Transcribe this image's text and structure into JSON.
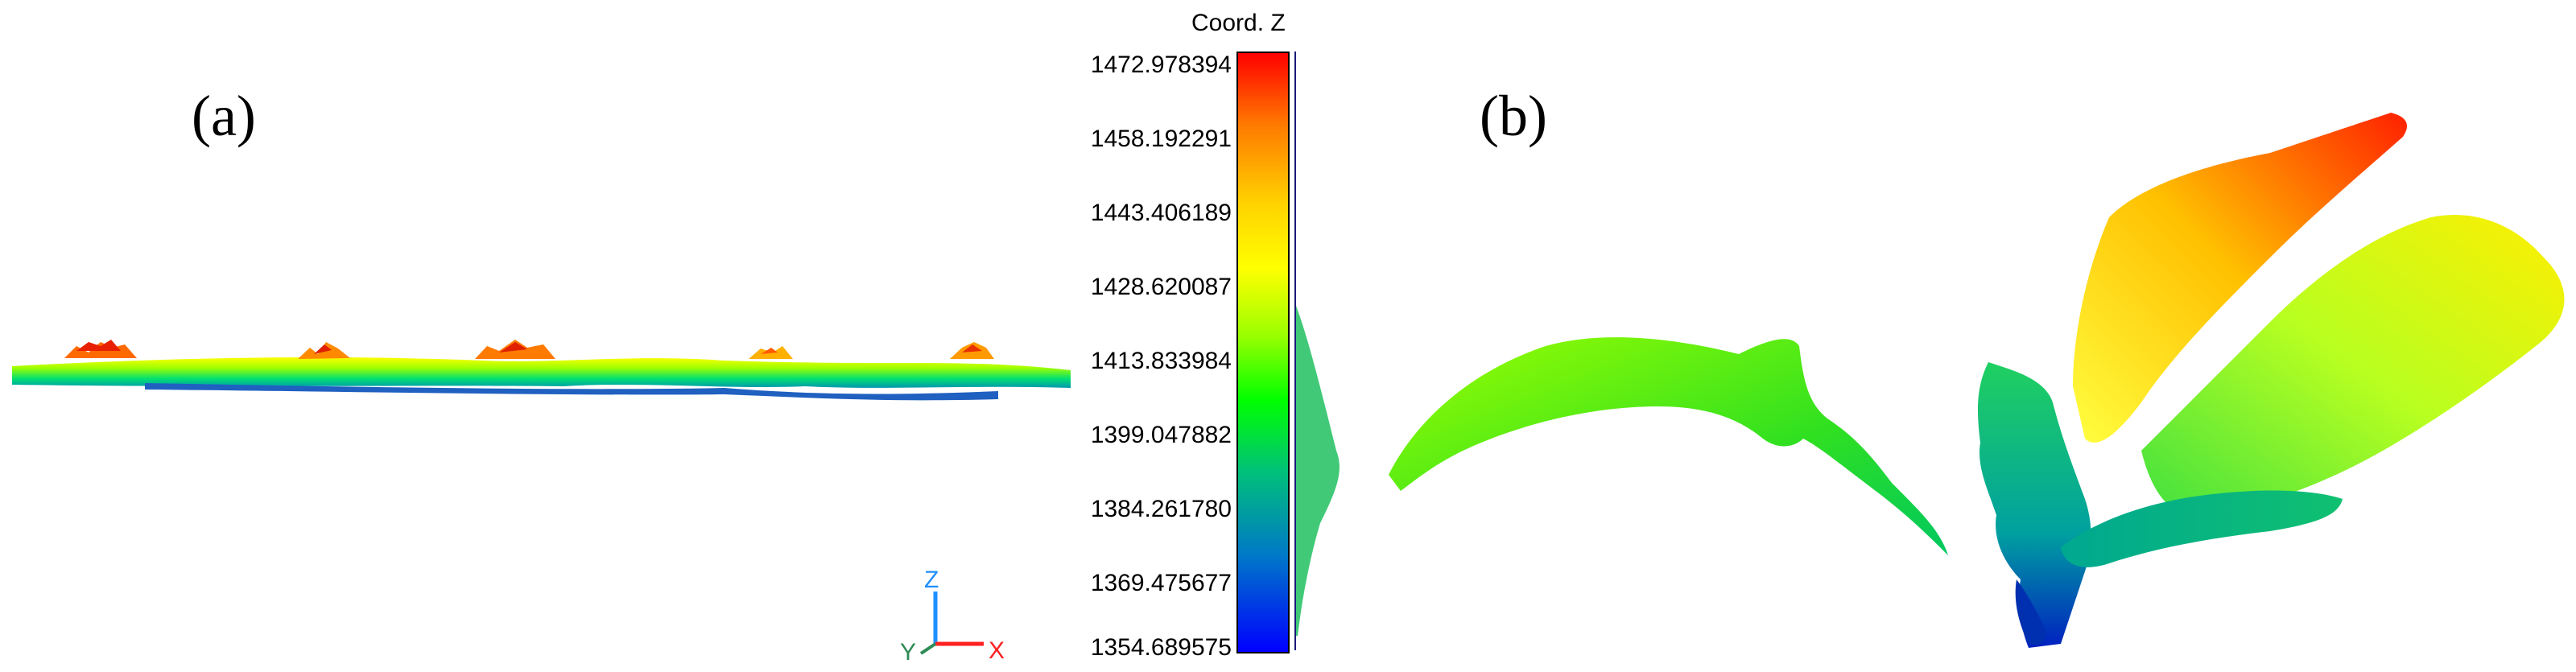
{
  "panels": {
    "a_label": "(a)",
    "b_label": "(b)"
  },
  "colorbar": {
    "title": "Coord. Z",
    "ticks": [
      "1472.978394",
      "1458.192291",
      "1443.406189",
      "1428.620087",
      "1413.833984",
      "1399.047882",
      "1384.261780",
      "1369.475677",
      "1354.689575"
    ],
    "gradient_colors": [
      "#ff0000",
      "#ff7a00",
      "#ffd200",
      "#ffff00",
      "#9cff00",
      "#00ff00",
      "#00c07a",
      "#0078c8",
      "#0000ff"
    ]
  },
  "axis_triad": {
    "z": "Z",
    "y": "Y",
    "x": "X",
    "colors": {
      "z": "#1e90ff",
      "y": "#2e8b57",
      "x": "#ff2020"
    }
  }
}
